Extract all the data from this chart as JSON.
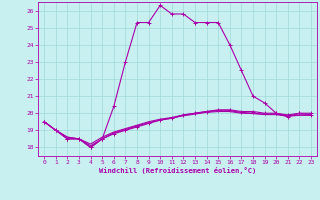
{
  "xlabel": "Windchill (Refroidissement éolien,°C)",
  "background_color": "#c8f0f0",
  "grid_color": "#a0d8d8",
  "line_color": "#aa00aa",
  "hours": [
    0,
    1,
    2,
    3,
    4,
    5,
    6,
    7,
    8,
    9,
    10,
    11,
    12,
    13,
    14,
    15,
    16,
    17,
    18,
    19,
    20,
    21,
    22,
    23
  ],
  "temp": [
    19.5,
    19.0,
    18.5,
    18.5,
    18.0,
    18.5,
    20.4,
    23.0,
    25.3,
    25.3,
    26.3,
    25.8,
    25.8,
    25.3,
    25.3,
    25.3,
    24.0,
    22.5,
    21.0,
    20.6,
    20.0,
    19.8,
    20.0,
    19.9
  ],
  "wc1": [
    19.5,
    19.0,
    18.5,
    18.5,
    18.0,
    18.5,
    18.8,
    19.0,
    19.2,
    19.4,
    19.6,
    19.7,
    19.9,
    20.0,
    20.1,
    20.2,
    20.2,
    20.1,
    20.1,
    20.0,
    20.0,
    19.9,
    20.0,
    20.0
  ],
  "wc2": [
    19.5,
    19.0,
    18.6,
    18.5,
    18.2,
    18.6,
    18.9,
    19.1,
    19.3,
    19.5,
    19.65,
    19.75,
    19.9,
    20.0,
    20.1,
    20.15,
    20.15,
    20.05,
    20.0,
    19.95,
    19.95,
    19.85,
    19.9,
    19.9
  ],
  "wc3": [
    19.5,
    19.0,
    18.6,
    18.5,
    18.1,
    18.5,
    18.85,
    19.05,
    19.25,
    19.45,
    19.6,
    19.72,
    19.85,
    19.95,
    20.05,
    20.1,
    20.1,
    20.0,
    19.98,
    19.92,
    19.92,
    19.82,
    19.88,
    19.88
  ],
  "ylim": [
    17.5,
    26.5
  ],
  "yticks": [
    18,
    19,
    20,
    21,
    22,
    23,
    24,
    25,
    26
  ],
  "xticks": [
    0,
    1,
    2,
    3,
    4,
    5,
    6,
    7,
    8,
    9,
    10,
    11,
    12,
    13,
    14,
    15,
    16,
    17,
    18,
    19,
    20,
    21,
    22,
    23
  ]
}
